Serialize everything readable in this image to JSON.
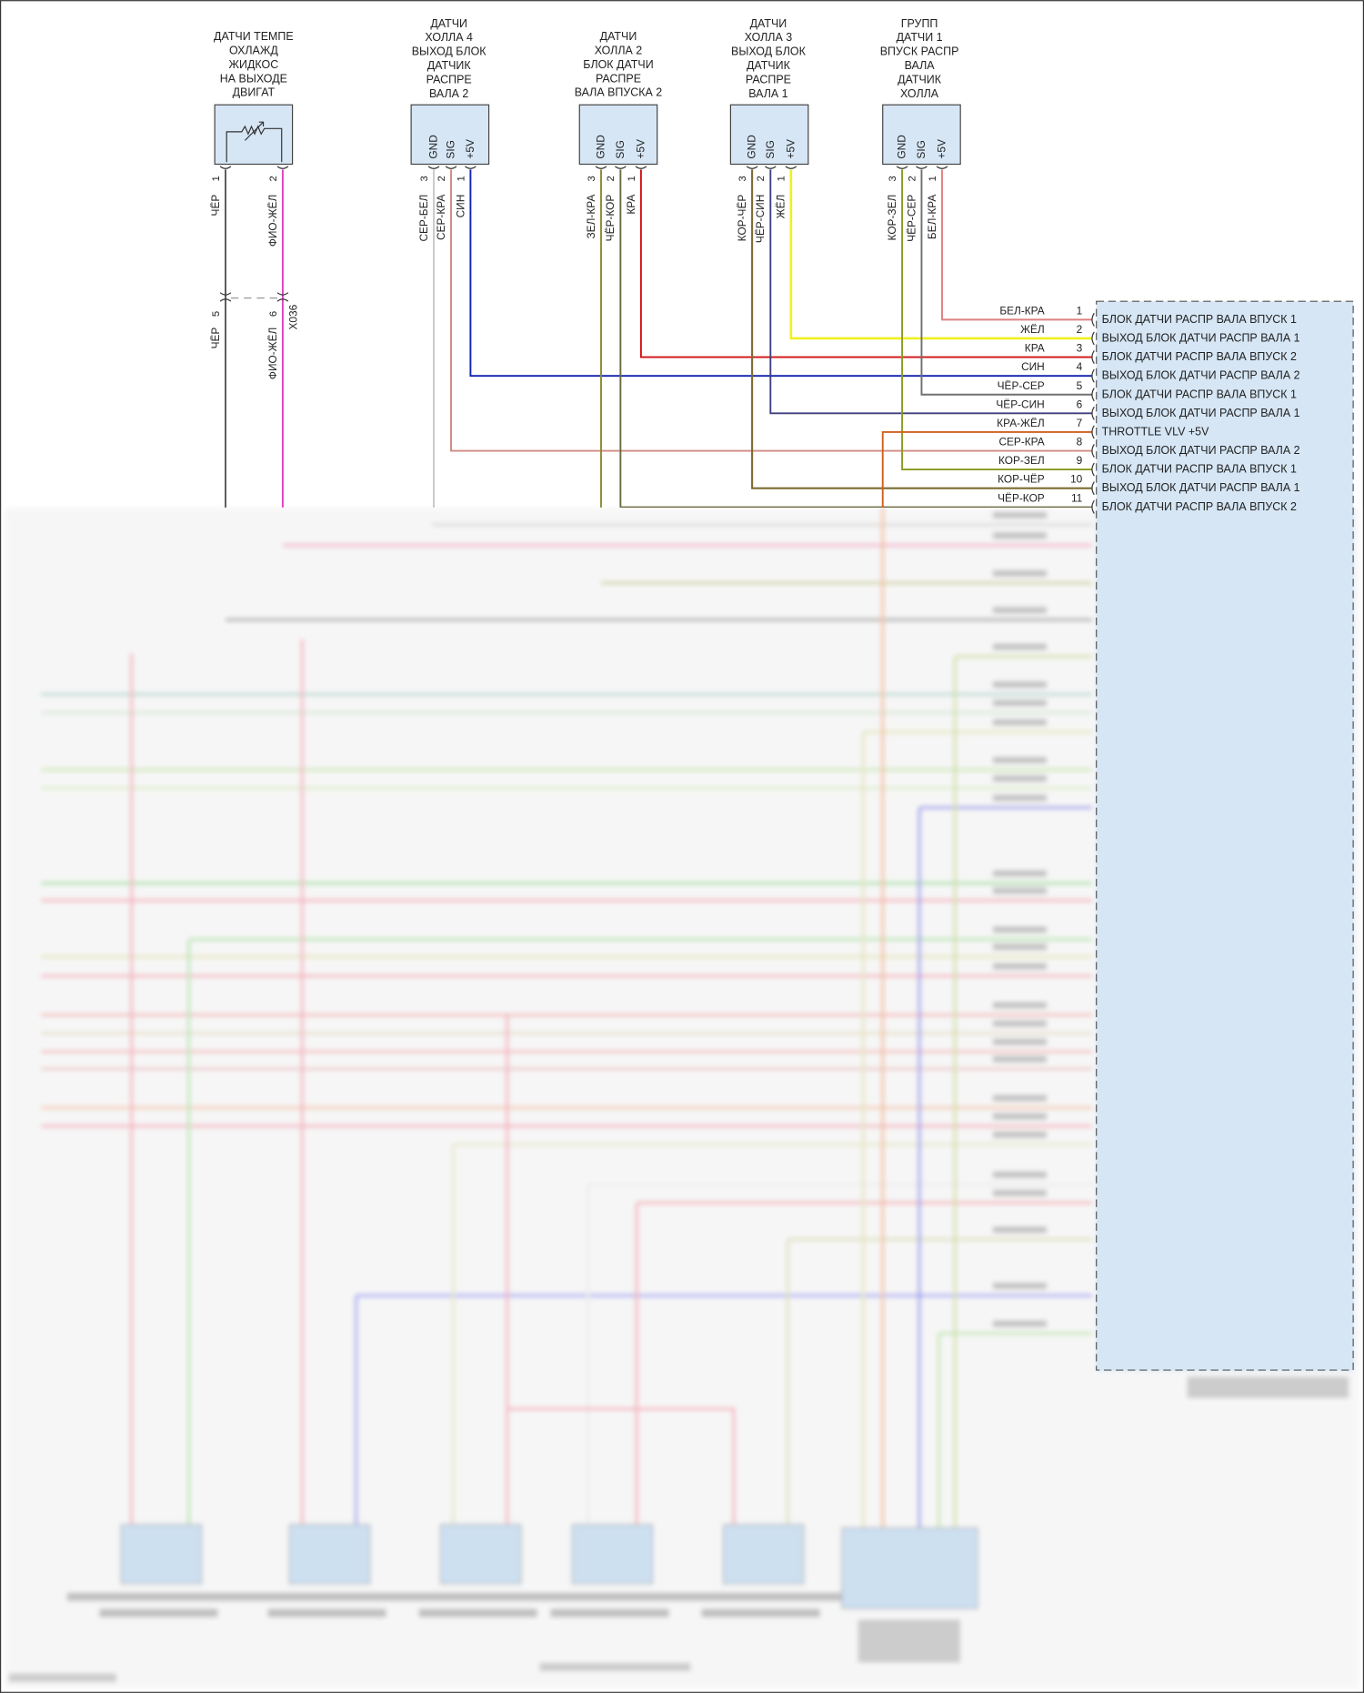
{
  "sensors": [
    {
      "title": [
        "ДАТЧИ ТЕМПЕ",
        "ОХЛАЖД",
        "ЖИДКОС",
        "НА ВЫХОДЕ",
        "ДВИГАТ"
      ],
      "type": "thermistor",
      "pins": [
        {
          "num": "1",
          "wire": "ЧЁР",
          "color": "#555555"
        },
        {
          "num": "2",
          "wire": "ФИО-ЖЁЛ",
          "color": "#e040c0"
        }
      ]
    },
    {
      "title": [
        "ДАТЧИ",
        "ХОЛЛА 4",
        "ВЫХОД БЛОК",
        "ДАТЧИК",
        "РАСПРЕ",
        "ВАЛА 2"
      ],
      "type": "hall",
      "pin_labels": [
        "GND",
        "SIG",
        "+5V"
      ],
      "pins": [
        {
          "num": "3",
          "wire": "СЕР-БЕЛ",
          "color": "#c8c8c8"
        },
        {
          "num": "2",
          "wire": "СЕР-КРА",
          "color": "#d08a80"
        },
        {
          "num": "1",
          "wire": "СИН",
          "color": "#1020b0"
        }
      ]
    },
    {
      "title": [
        "ДАТЧИ",
        "ХОЛЛА 2",
        "БЛОК ДАТЧИ",
        "РАСПРЕ",
        "ВАЛА ВПУСКА 2"
      ],
      "type": "hall",
      "pin_labels": [
        "GND",
        "SIG",
        "+5V"
      ],
      "pins": [
        {
          "num": "3",
          "wire": "ЗЕЛ-КРА",
          "color": "#8a8a30"
        },
        {
          "num": "2",
          "wire": "ЧЁР-КОР",
          "color": "#6a6a40"
        },
        {
          "num": "1",
          "wire": "КРА",
          "color": "#d01010"
        }
      ]
    },
    {
      "title": [
        "ДАТЧИ",
        "ХОЛЛА 3",
        "ВЫХОД БЛОК",
        "ДАТЧИК",
        "РАСПРЕ",
        "ВАЛА 1"
      ],
      "type": "hall",
      "pin_labels": [
        "GND",
        "SIG",
        "+5V"
      ],
      "pins": [
        {
          "num": "3",
          "wire": "КОР-ЧЁР",
          "color": "#7a6a30"
        },
        {
          "num": "2",
          "wire": "ЧЁР-СИН",
          "color": "#404080"
        },
        {
          "num": "1",
          "wire": "ЖЁЛ",
          "color": "#f0f020"
        }
      ]
    },
    {
      "title": [
        "ГРУПП",
        "ДАТЧИ 1",
        "ВПУСК РАСПР",
        "ВАЛА",
        "ДАТЧИК",
        "ХОЛЛА"
      ],
      "type": "hall",
      "pin_labels": [
        "GND",
        "SIG",
        "+5V"
      ],
      "pins": [
        {
          "num": "3",
          "wire": "КОР-ЗЕЛ",
          "color": "#8a9a20"
        },
        {
          "num": "2",
          "wire": "ЧЁР-СЕР",
          "color": "#707070"
        },
        {
          "num": "1",
          "wire": "БЕЛ-КРА",
          "color": "#e08080"
        }
      ]
    }
  ],
  "inline_connector": {
    "name": "X036",
    "pins": [
      {
        "num": "5",
        "wire": "ЧЁР"
      },
      {
        "num": "6",
        "wire": "ФИО-ЖЁЛ"
      }
    ]
  },
  "ecu_connector": {
    "pins": [
      {
        "num": "1",
        "wire": "БЕЛ-КРА",
        "function": "БЛОК ДАТЧИ РАСПР ВАЛА ВПУСК 1",
        "color": "#e08080"
      },
      {
        "num": "2",
        "wire": "ЖЁЛ",
        "function": "ВЫХОД БЛОК ДАТЧИ РАСПР ВАЛА 1",
        "color": "#f0f020"
      },
      {
        "num": "3",
        "wire": "КРА",
        "function": "БЛОК ДАТЧИ РАСПР ВАЛА ВПУСК 2",
        "color": "#d01010"
      },
      {
        "num": "4",
        "wire": "СИН",
        "function": "ВЫХОД БЛОК ДАТЧИ РАСПР ВАЛА 2",
        "color": "#1020b0"
      },
      {
        "num": "5",
        "wire": "ЧЁР-СЕР",
        "function": "БЛОК ДАТЧИ РАСПР ВАЛА ВПУСК 1",
        "color": "#707070"
      },
      {
        "num": "6",
        "wire": "ЧЁР-СИН",
        "function": "ВЫХОД БЛОК ДАТЧИ РАСПР ВАЛА 1",
        "color": "#404080"
      },
      {
        "num": "7",
        "wire": "КРА-ЖЁЛ",
        "function": "THROTTLE VLV +5V",
        "color": "#d06020"
      },
      {
        "num": "8",
        "wire": "СЕР-КРА",
        "function": "ВЫХОД БЛОК ДАТЧИ РАСПР ВАЛА 2",
        "color": "#d08a80"
      },
      {
        "num": "9",
        "wire": "КОР-ЗЕЛ",
        "function": "БЛОК ДАТЧИ РАСПР ВАЛА ВПУСК 1",
        "color": "#8a9a20"
      },
      {
        "num": "10",
        "wire": "КОР-ЧЁР",
        "function": "ВЫХОД БЛОК ДАТЧИ РАСПР ВАЛА 1",
        "color": "#7a6a30"
      },
      {
        "num": "11",
        "wire": "ЧЁР-КОР",
        "function": "БЛОК ДАТЧИ РАСПР ВАЛА ВПУСК 2",
        "color": "#6a6a40"
      }
    ]
  }
}
